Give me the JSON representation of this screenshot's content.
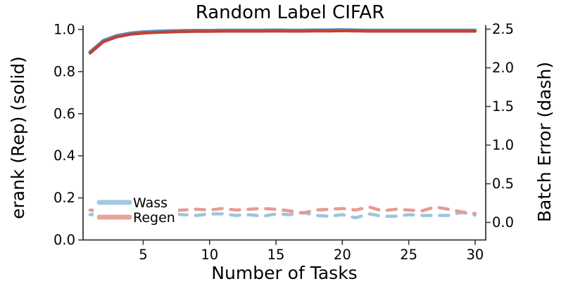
{
  "chart_data": {
    "type": "line",
    "title": "Random Label CIFAR",
    "xlabel": "Number of Tasks",
    "ylabel_left": "erank (Rep) (solid)",
    "ylabel_right": "Batch Error (dash)",
    "x_ticks": [
      "5",
      "10",
      "15",
      "20",
      "25",
      "30"
    ],
    "left_y_ticks": [
      "0.0",
      "0.2",
      "0.4",
      "0.6",
      "0.8",
      "1.0"
    ],
    "right_y_ticks": [
      "0.0",
      "0.5",
      "1.0",
      "1.5",
      "2.0",
      "2.5"
    ],
    "xlim": [
      0.4,
      30.8
    ],
    "left_ylim": [
      0.0,
      1.02
    ],
    "right_ylim": [
      -0.23,
      2.55
    ],
    "grid": false,
    "colors": {
      "solid_wass": "#5d8fbe",
      "solid_regen": "#bf4236",
      "dash_wass": "#9fc4dd",
      "dash_regen": "#e49c94",
      "spine": "#3a3a3a",
      "background": "#ffffff",
      "text": "#000000"
    },
    "legend": {
      "position": "lower left",
      "entries": [
        {
          "label": "Wass",
          "color": "#a3c8e0"
        },
        {
          "label": "Regen",
          "color": "#e8a39c"
        }
      ]
    },
    "x": [
      1,
      2,
      3,
      4,
      5,
      6,
      7,
      8,
      9,
      10,
      11,
      12,
      13,
      14,
      15,
      16,
      17,
      18,
      19,
      20,
      21,
      22,
      23,
      24,
      25,
      26,
      27,
      28,
      29,
      30
    ],
    "series": [
      {
        "name": "Wass erank (Rep)",
        "axis": "left",
        "style": "solid",
        "color": "#5d8fbe",
        "width": 5,
        "values": [
          0.893,
          0.947,
          0.97,
          0.982,
          0.988,
          0.991,
          0.993,
          0.994,
          0.995,
          0.995,
          0.996,
          0.996,
          0.996,
          0.996,
          0.997,
          0.996,
          0.996,
          0.997,
          0.997,
          0.998,
          0.997,
          0.996,
          0.996,
          0.996,
          0.996,
          0.996,
          0.996,
          0.996,
          0.996,
          0.996
        ]
      },
      {
        "name": "Regen erank (Rep)",
        "axis": "left",
        "style": "solid",
        "color": "#bf4236",
        "width": 4.2,
        "values": [
          0.888,
          0.942,
          0.965,
          0.977,
          0.983,
          0.986,
          0.988,
          0.99,
          0.991,
          0.991,
          0.992,
          0.992,
          0.992,
          0.992,
          0.993,
          0.992,
          0.992,
          0.993,
          0.993,
          0.994,
          0.993,
          0.992,
          0.992,
          0.992,
          0.992,
          0.992,
          0.992,
          0.992,
          0.992,
          0.992
        ]
      },
      {
        "name": "Wass Batch Error",
        "axis": "right",
        "style": "dashed",
        "color": "#9fc4dd",
        "width": 4.5,
        "values": [
          0.1,
          0.11,
          0.1,
          0.1,
          0.11,
          0.1,
          0.11,
          0.1,
          0.09,
          0.11,
          0.11,
          0.09,
          0.1,
          0.08,
          0.11,
          0.1,
          0.13,
          0.09,
          0.08,
          0.1,
          0.06,
          0.11,
          0.08,
          0.08,
          0.1,
          0.09,
          0.09,
          0.09,
          0.13,
          0.095
        ]
      },
      {
        "name": "Regen Batch Error",
        "axis": "right",
        "style": "dashed",
        "color": "#e49c94",
        "width": 4.5,
        "values": [
          0.16,
          0.14,
          0.14,
          0.13,
          0.14,
          0.14,
          0.15,
          0.16,
          0.17,
          0.16,
          0.18,
          0.16,
          0.17,
          0.18,
          0.17,
          0.15,
          0.12,
          0.16,
          0.17,
          0.18,
          0.16,
          0.2,
          0.15,
          0.17,
          0.16,
          0.15,
          0.2,
          0.17,
          0.135,
          0.115
        ]
      }
    ]
  }
}
